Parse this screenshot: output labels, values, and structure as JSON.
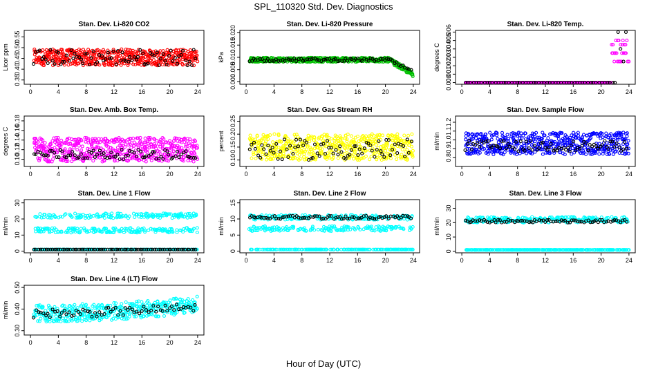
{
  "figure": {
    "title": "SPL_110320  Std. Dev. Diagnostics",
    "xlabel": "Hour of Day (UTC)"
  },
  "chart_data": [
    {
      "type": "scatter",
      "title": "Stan. Dev. Li-820 CO2",
      "ylabel": "Licor ppm",
      "xlim": [
        0,
        24
      ],
      "ylim": [
        0.33,
        0.58
      ],
      "xticks": [
        "0",
        "4",
        "8",
        "12",
        "16",
        "20",
        "24"
      ],
      "yticks": [
        "0.35",
        "0.40",
        "0.45",
        "0.50",
        "0.55"
      ],
      "ytick_values": [
        0.35,
        0.4,
        0.45,
        0.5,
        0.55
      ],
      "series": [
        {
          "color": "#ff0000",
          "pattern": {
            "n": 520,
            "base": 0.455,
            "spread": 0.075
          }
        },
        {
          "color": "#000000",
          "pattern": {
            "n": 80,
            "base": 0.455,
            "spread": 0.075
          }
        }
      ]
    },
    {
      "type": "scatter",
      "title": "Stan. Dev. Li-820 Pressure",
      "ylabel": "kPa",
      "xlim": [
        0,
        24
      ],
      "ylim": [
        -0.001,
        0.021
      ],
      "xticks": [
        "0",
        "4",
        "8",
        "12",
        "16",
        "20",
        "24"
      ],
      "yticks": [
        "0.000",
        "0.005",
        "0.010",
        "0.015",
        "0.020"
      ],
      "ytick_values": [
        0,
        0.005,
        0.01,
        0.015,
        0.02
      ],
      "series": [
        {
          "color": "#00c000",
          "pattern": {
            "n": 520,
            "base": 0.009,
            "spread": 0.0018,
            "drop_after": 20.5,
            "drop_to": 0.003
          }
        },
        {
          "color": "#000000",
          "pattern": {
            "n": 80,
            "base": 0.009,
            "spread": 0.0012,
            "drop_after": 20.5,
            "drop_to": 0.004
          }
        }
      ]
    },
    {
      "type": "scatter",
      "title": "Stan. Dev. Li-820 Temp.",
      "ylabel": "degrees C",
      "xlim": [
        0,
        24
      ],
      "ylim": [
        -0.0002,
        0.0062
      ],
      "xticks": [
        "0",
        "4",
        "8",
        "12",
        "16",
        "20",
        "24"
      ],
      "yticks": [
        "0.000",
        "0.001",
        "0.002",
        "0.003",
        "0.004",
        "0.005",
        "0.006"
      ],
      "ytick_values": [
        0,
        0.001,
        0.002,
        0.003,
        0.004,
        0.005,
        0.006
      ],
      "series": [
        {
          "color": "#ff00ff",
          "pattern": {
            "n": 260,
            "base": 0.0,
            "spread": 0.0,
            "jump_after": 21.5,
            "levels": [
              0.0025,
              0.0035,
              0.0045,
              0.005
            ]
          }
        },
        {
          "color": "#000000",
          "pattern": {
            "n": 60,
            "base": 0.0,
            "spread": 0.0,
            "jump_after": 22.3,
            "levels": [
              0.0025,
              0.004,
              0.0045,
              0.0055,
              0.006
            ]
          }
        }
      ]
    },
    {
      "type": "scatter",
      "title": "Stan. Dev. Amb. Box Temp.",
      "ylabel": "degrees C",
      "xlim": [
        0,
        24
      ],
      "ylim": [
        0.085,
        0.19
      ],
      "xticks": [
        "0",
        "4",
        "8",
        "12",
        "16",
        "20",
        "24"
      ],
      "yticks": [
        "0.10",
        "0.12",
        "0.14",
        "0.16",
        "0.18"
      ],
      "ytick_values": [
        0.1,
        0.12,
        0.14,
        0.16,
        0.18
      ],
      "series": [
        {
          "color": "#ff00ff",
          "pattern": {
            "n": 520,
            "base": 0.12,
            "spread": 0.05
          }
        },
        {
          "color": "#000000",
          "pattern": {
            "n": 80,
            "base": 0.11,
            "spread": 0.02
          }
        }
      ]
    },
    {
      "type": "scatter",
      "title": "Stan. Dev. Gas Stream RH",
      "ylabel": "percent",
      "xlim": [
        0,
        24
      ],
      "ylim": [
        0.075,
        0.27
      ],
      "xticks": [
        "0",
        "4",
        "8",
        "12",
        "16",
        "20",
        "24"
      ],
      "yticks": [
        "0.10",
        "0.15",
        "0.20",
        "0.25"
      ],
      "ytick_values": [
        0.1,
        0.15,
        0.2,
        0.25
      ],
      "series": [
        {
          "color": "#ffff00",
          "pattern": {
            "n": 520,
            "base": 0.15,
            "spread": 0.1
          }
        },
        {
          "color": "#000000",
          "pattern": {
            "n": 80,
            "base": 0.14,
            "spread": 0.08
          }
        }
      ]
    },
    {
      "type": "scatter",
      "title": "Stan. Dev. Sample Flow",
      "ylabel": "ml/min",
      "xlim": [
        0,
        24
      ],
      "ylim": [
        0.7,
        1.27
      ],
      "xticks": [
        "0",
        "4",
        "8",
        "12",
        "16",
        "20",
        "24"
      ],
      "yticks": [
        "0.8",
        "0.9",
        "1.0",
        "1.1",
        "1.2"
      ],
      "ytick_values": [
        0.8,
        0.9,
        1.0,
        1.1,
        1.2
      ],
      "series": [
        {
          "color": "#0000ff",
          "pattern": {
            "n": 520,
            "base": 0.96,
            "spread": 0.25
          }
        },
        {
          "color": "#000000",
          "pattern": {
            "n": 80,
            "base": 0.93,
            "spread": 0.12
          }
        }
      ]
    },
    {
      "type": "scatter",
      "title": "Stan. Dev. Line 1 Flow",
      "ylabel": "ml/min",
      "xlim": [
        0,
        24
      ],
      "ylim": [
        -1,
        32
      ],
      "xticks": [
        "0",
        "4",
        "8",
        "12",
        "16",
        "20",
        "24"
      ],
      "yticks": [
        "0",
        "10",
        "20",
        "30"
      ],
      "ytick_values": [
        0,
        10,
        20,
        30
      ],
      "series": [
        {
          "color": "#00ffff",
          "pattern": {
            "n": 520,
            "bands": [
              1,
              13,
              22
            ],
            "spread": 3
          }
        },
        {
          "color": "#000000",
          "pattern": {
            "n": 80,
            "bands": [
              1
            ],
            "spread": 0
          }
        }
      ]
    },
    {
      "type": "scatter",
      "title": "Stan. Dev. Line 2 Flow",
      "ylabel": "ml/min",
      "xlim": [
        0,
        24
      ],
      "ylim": [
        -0.5,
        16
      ],
      "xticks": [
        "0",
        "4",
        "8",
        "12",
        "16",
        "20",
        "24"
      ],
      "yticks": [
        "0",
        "5",
        "10",
        "15"
      ],
      "ytick_values": [
        0,
        5,
        10,
        15
      ],
      "series": [
        {
          "color": "#00ffff",
          "pattern": {
            "n": 520,
            "bands": [
              0.5,
              7,
              10.5
            ],
            "spread": 1.5
          }
        },
        {
          "color": "#000000",
          "pattern": {
            "n": 80,
            "bands": [
              10.5
            ],
            "spread": 1
          }
        }
      ]
    },
    {
      "type": "scatter",
      "title": "Stan. Dev. Line 3 Flow",
      "ylabel": "ml/min",
      "xlim": [
        0,
        24
      ],
      "ylim": [
        -1,
        36
      ],
      "xticks": [
        "0",
        "4",
        "8",
        "12",
        "16",
        "20",
        "24"
      ],
      "yticks": [
        "0",
        "10",
        "20",
        "30"
      ],
      "ytick_values": [
        0,
        10,
        20,
        30
      ],
      "series": [
        {
          "color": "#00ffff",
          "pattern": {
            "n": 520,
            "bands": [
              1,
              22
            ],
            "spread": 4
          }
        },
        {
          "color": "#000000",
          "pattern": {
            "n": 80,
            "bands": [
              21
            ],
            "spread": 2
          }
        }
      ]
    },
    {
      "type": "scatter",
      "title": "Stan. Dev. Line 4 (LT) Flow",
      "ylabel": "ml/min",
      "xlim": [
        0,
        24
      ],
      "ylim": [
        0.28,
        0.51
      ],
      "xticks": [
        "0",
        "4",
        "8",
        "12",
        "16",
        "20",
        "24"
      ],
      "yticks": [
        "0.30",
        "0.40",
        "0.50"
      ],
      "ytick_values": [
        0.3,
        0.4,
        0.5
      ],
      "series": [
        {
          "color": "#00ffff",
          "pattern": {
            "n": 420,
            "base": 0.38,
            "spread": 0.08,
            "rise": 0.04
          }
        },
        {
          "color": "#000000",
          "pattern": {
            "n": 70,
            "base": 0.38,
            "spread": 0.04,
            "rise": 0.03
          }
        }
      ]
    }
  ]
}
